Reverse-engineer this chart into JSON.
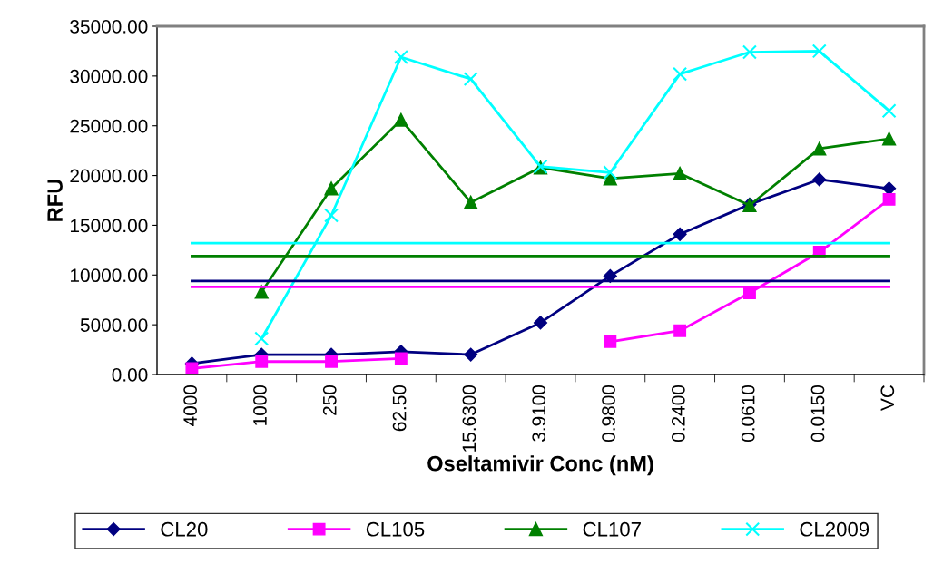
{
  "chart_data": {
    "type": "line",
    "xlabel": "Oseltamivir Conc (nM)",
    "ylabel": "RFU",
    "categories": [
      "4000",
      "1000",
      "250",
      "62.50",
      "15.6300",
      "3.9100",
      "0.9800",
      "0.2400",
      "0.0610",
      "0.0150",
      "VC"
    ],
    "ylim": [
      0,
      35000
    ],
    "yticks": [
      {
        "value": 0,
        "label": "0.00"
      },
      {
        "value": 5000,
        "label": "5000.00"
      },
      {
        "value": 10000,
        "label": "10000.00"
      },
      {
        "value": 15000,
        "label": "15000.00"
      },
      {
        "value": 20000,
        "label": "20000.00"
      },
      {
        "value": 25000,
        "label": "25000.00"
      },
      {
        "value": 30000,
        "label": "30000.00"
      },
      {
        "value": 35000,
        "label": "35000.00"
      }
    ],
    "grid": false,
    "legend": "bottom",
    "series": [
      {
        "name": "CL20",
        "color": "#000080",
        "marker": "diamond",
        "values": [
          1100,
          2000,
          2000,
          2300,
          2000,
          5200,
          9900,
          14100,
          17100,
          19600,
          18700
        ]
      },
      {
        "name": "CL105",
        "color": "#ff00ff",
        "marker": "square",
        "values": [
          600,
          1300,
          1300,
          1600,
          null,
          null,
          3300,
          4400,
          8200,
          12300,
          17600
        ]
      },
      {
        "name": "CL107",
        "color": "#008000",
        "marker": "triangle",
        "values": [
          null,
          8300,
          18700,
          25600,
          17300,
          20800,
          19700,
          20200,
          17000,
          22700,
          23700
        ]
      },
      {
        "name": "CL2009",
        "color": "#00ffff",
        "marker": "cross",
        "values": [
          null,
          3600,
          16000,
          31900,
          29700,
          20900,
          20300,
          30200,
          32400,
          32500,
          26500
        ]
      },
      {
        "color": "#000080",
        "marker": "none",
        "values": [
          9400,
          9400,
          9400,
          9400,
          9400,
          9400,
          9400,
          9400,
          9400,
          9400,
          9400
        ]
      },
      {
        "color": "#ff00ff",
        "marker": "none",
        "values": [
          8800,
          8800,
          8800,
          8800,
          8800,
          8800,
          8800,
          8800,
          8800,
          8800,
          8800
        ]
      },
      {
        "color": "#008000",
        "marker": "none",
        "values": [
          11900,
          11900,
          11900,
          11900,
          11900,
          11900,
          11900,
          11900,
          11900,
          11900,
          11900
        ]
      },
      {
        "color": "#00ffff",
        "marker": "none",
        "values": [
          13200,
          13200,
          13200,
          13200,
          13200,
          13200,
          13200,
          13200,
          13200,
          13200,
          13200
        ]
      }
    ]
  }
}
